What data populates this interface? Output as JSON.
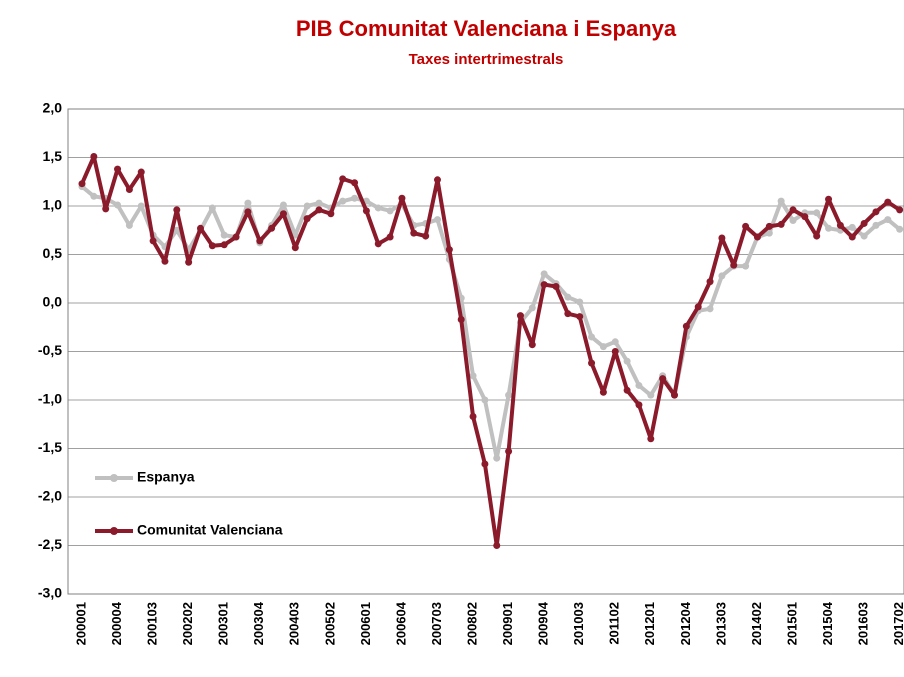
{
  "chart_data": {
    "type": "line",
    "title": "PIB Comunitat Valenciana i Espanya",
    "subtitle": "Taxes intertrimestrals",
    "categories": [
      "200001",
      null,
      null,
      "200004",
      null,
      null,
      "200103",
      null,
      null,
      "200202",
      null,
      null,
      "200301",
      null,
      null,
      "200304",
      null,
      null,
      "200403",
      null,
      null,
      "200502",
      null,
      null,
      "200601",
      null,
      null,
      "200604",
      null,
      null,
      "200703",
      null,
      null,
      "200802",
      null,
      null,
      "200901",
      null,
      null,
      "200904",
      null,
      null,
      "201003",
      null,
      null,
      "201102",
      null,
      null,
      "201201",
      null,
      null,
      "201204",
      null,
      null,
      "201303",
      null,
      null,
      "201402",
      null,
      null,
      "201501",
      null,
      null,
      "201504",
      null,
      null,
      "201603",
      null,
      null,
      "201702"
    ],
    "series": [
      {
        "name": "Espanya",
        "color": "#c0c0c0",
        "values": [
          1.2,
          1.1,
          1.08,
          1.01,
          0.8,
          1.0,
          0.7,
          0.58,
          0.75,
          0.55,
          0.75,
          0.98,
          0.7,
          0.68,
          1.03,
          0.62,
          0.8,
          1.01,
          0.7,
          1.0,
          1.03,
          0.98,
          1.05,
          1.08,
          1.05,
          0.98,
          0.95,
          1.02,
          0.8,
          0.82,
          0.86,
          0.45,
          0.05,
          -0.75,
          -1.0,
          -1.6,
          -0.95,
          -0.2,
          -0.05,
          0.3,
          0.2,
          0.06,
          0.01,
          -0.35,
          -0.45,
          -0.4,
          -0.6,
          -0.85,
          -0.95,
          -0.75,
          -0.95,
          -0.35,
          -0.08,
          -0.06,
          0.28,
          0.38,
          0.38,
          0.68,
          0.72,
          1.05,
          0.85,
          0.93,
          0.93,
          0.77,
          0.75,
          0.78,
          0.69,
          0.8,
          0.86,
          0.76
        ]
      },
      {
        "name": "Comunitat Valenciana",
        "color": "#8b1a2b",
        "values": [
          1.23,
          1.51,
          0.97,
          1.38,
          1.17,
          1.35,
          0.64,
          0.43,
          0.96,
          0.42,
          0.77,
          0.59,
          0.6,
          0.68,
          0.94,
          0.64,
          0.77,
          0.92,
          0.57,
          0.87,
          0.96,
          0.92,
          1.28,
          1.24,
          0.95,
          0.61,
          0.68,
          1.08,
          0.72,
          0.69,
          1.27,
          0.55,
          -0.17,
          -1.17,
          -1.66,
          -2.5,
          -1.53,
          -0.13,
          -0.43,
          0.19,
          0.17,
          -0.11,
          -0.14,
          -0.62,
          -0.92,
          -0.5,
          -0.9,
          -1.05,
          -1.4,
          -0.78,
          -0.95,
          -0.24,
          -0.04,
          0.22,
          0.67,
          0.39,
          0.79,
          0.68,
          0.79,
          0.81,
          0.96,
          0.89,
          0.69,
          1.07,
          0.8,
          0.68,
          0.82,
          0.94,
          1.04,
          0.96
        ]
      }
    ],
    "ylim": [
      -3.0,
      2.0
    ],
    "yticks": [
      {
        "value": -3.0,
        "label": "-3,0"
      },
      {
        "value": -2.5,
        "label": "-2,5"
      },
      {
        "value": -2.0,
        "label": "-2,0"
      },
      {
        "value": -1.5,
        "label": "-1,5"
      },
      {
        "value": -1.0,
        "label": "-1,0"
      },
      {
        "value": -0.5,
        "label": "-0,5"
      },
      {
        "value": 0.0,
        "label": "0,0"
      },
      {
        "value": 0.5,
        "label": "0,5"
      },
      {
        "value": 1.0,
        "label": "1,0"
      },
      {
        "value": 1.5,
        "label": "1,5"
      },
      {
        "value": 2.0,
        "label": "2,0"
      }
    ],
    "grid": true,
    "legend": "left"
  }
}
